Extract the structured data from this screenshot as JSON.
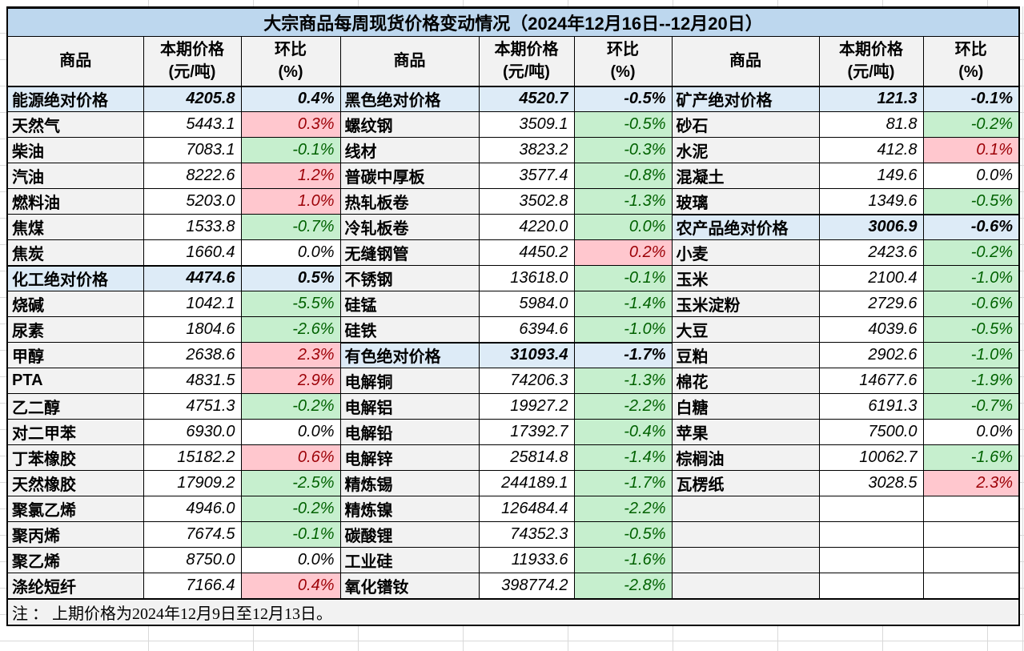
{
  "title": "大宗商品每周现货价格变动情况（2024年12月16日--12月20日）",
  "note": "注 ： 上期价格为2024年12月9日至12月13日。",
  "columns": {
    "name": "商品",
    "price_l1": "本期价格",
    "price_l2": "(元/吨)",
    "chg_l1": "环比",
    "chg_l2": "(%)"
  },
  "colors": {
    "title_bg": "#BDD7EE",
    "header_bg": "#F2F2F2",
    "category_bg": "#DDEBF7",
    "name_bg": "#F2F2F2",
    "up_bg": "#FFC7CE",
    "up_text": "#9C0006",
    "down_bg": "#C6EFCE",
    "down_text": "#006100",
    "border": "#000000"
  },
  "groups": [
    {
      "rows": [
        {
          "name": "能源绝对价格",
          "price": "4205.8",
          "chg": "0.4%",
          "kind": "category"
        },
        {
          "name": "天然气",
          "price": "5443.1",
          "chg": "0.3%",
          "kind": "item",
          "style": "up"
        },
        {
          "name": "柴油",
          "price": "7083.1",
          "chg": "-0.1%",
          "kind": "item",
          "style": "down"
        },
        {
          "name": "汽油",
          "price": "8222.6",
          "chg": "1.2%",
          "kind": "item",
          "style": "up"
        },
        {
          "name": "燃料油",
          "price": "5203.0",
          "chg": "1.0%",
          "kind": "item",
          "style": "up"
        },
        {
          "name": "焦煤",
          "price": "1533.8",
          "chg": "-0.7%",
          "kind": "item",
          "style": "down"
        },
        {
          "name": "焦炭",
          "price": "1660.4",
          "chg": "0.0%",
          "kind": "item",
          "style": "flat"
        },
        {
          "name": "化工绝对价格",
          "price": "4474.6",
          "chg": "0.5%",
          "kind": "category"
        },
        {
          "name": "烧碱",
          "price": "1042.1",
          "chg": "-5.5%",
          "kind": "item",
          "style": "down"
        },
        {
          "name": "尿素",
          "price": "1804.6",
          "chg": "-2.6%",
          "kind": "item",
          "style": "down"
        },
        {
          "name": "甲醇",
          "price": "2638.6",
          "chg": "2.3%",
          "kind": "item",
          "style": "up"
        },
        {
          "name": "PTA",
          "price": "4831.5",
          "chg": "2.9%",
          "kind": "item",
          "style": "up"
        },
        {
          "name": "乙二醇",
          "price": "4751.3",
          "chg": "-0.2%",
          "kind": "item",
          "style": "down"
        },
        {
          "name": "对二甲苯",
          "price": "6930.0",
          "chg": "0.0%",
          "kind": "item",
          "style": "flat"
        },
        {
          "name": "丁苯橡胶",
          "price": "15182.2",
          "chg": "0.6%",
          "kind": "item",
          "style": "up"
        },
        {
          "name": "天然橡胶",
          "price": "17909.2",
          "chg": "-2.5%",
          "kind": "item",
          "style": "down"
        },
        {
          "name": "聚氯乙烯",
          "price": "4946.0",
          "chg": "-0.2%",
          "kind": "item",
          "style": "down"
        },
        {
          "name": "聚丙烯",
          "price": "7674.5",
          "chg": "-0.1%",
          "kind": "item",
          "style": "down"
        },
        {
          "name": "聚乙烯",
          "price": "8750.0",
          "chg": "0.0%",
          "kind": "item",
          "style": "flat"
        },
        {
          "name": "涤纶短纤",
          "price": "7166.4",
          "chg": "0.4%",
          "kind": "item",
          "style": "up"
        }
      ]
    },
    {
      "rows": [
        {
          "name": "黑色绝对价格",
          "price": "4520.7",
          "chg": "-0.5%",
          "kind": "category"
        },
        {
          "name": "螺纹钢",
          "price": "3509.1",
          "chg": "-0.5%",
          "kind": "item",
          "style": "down"
        },
        {
          "name": "线材",
          "price": "3823.2",
          "chg": "-0.3%",
          "kind": "item",
          "style": "down"
        },
        {
          "name": "普碳中厚板",
          "price": "3577.4",
          "chg": "-0.8%",
          "kind": "item",
          "style": "down"
        },
        {
          "name": "热轧板卷",
          "price": "3502.8",
          "chg": "-1.3%",
          "kind": "item",
          "style": "down"
        },
        {
          "name": "冷轧板卷",
          "price": "4220.0",
          "chg": "0.0%",
          "kind": "item",
          "style": "down"
        },
        {
          "name": "无缝钢管",
          "price": "4450.2",
          "chg": "0.2%",
          "kind": "item",
          "style": "up"
        },
        {
          "name": "不锈钢",
          "price": "13618.0",
          "chg": "-0.1%",
          "kind": "item",
          "style": "down"
        },
        {
          "name": "硅锰",
          "price": "5984.0",
          "chg": "-1.4%",
          "kind": "item",
          "style": "down"
        },
        {
          "name": "硅铁",
          "price": "6394.6",
          "chg": "-1.0%",
          "kind": "item",
          "style": "down"
        },
        {
          "name": "有色绝对价格",
          "price": "31093.4",
          "chg": "-1.7%",
          "kind": "category"
        },
        {
          "name": "电解铜",
          "price": "74206.3",
          "chg": "-1.3%",
          "kind": "item",
          "style": "down"
        },
        {
          "name": "电解铝",
          "price": "19927.2",
          "chg": "-2.2%",
          "kind": "item",
          "style": "down"
        },
        {
          "name": "电解铅",
          "price": "17392.7",
          "chg": "-0.4%",
          "kind": "item",
          "style": "down"
        },
        {
          "name": "电解锌",
          "price": "25814.8",
          "chg": "-1.4%",
          "kind": "item",
          "style": "down"
        },
        {
          "name": "精炼锡",
          "price": "244189.1",
          "chg": "-1.7%",
          "kind": "item",
          "style": "down"
        },
        {
          "name": "精炼镍",
          "price": "126484.4",
          "chg": "-2.2%",
          "kind": "item",
          "style": "down"
        },
        {
          "name": "碳酸锂",
          "price": "74352.3",
          "chg": "-0.5%",
          "kind": "item",
          "style": "down"
        },
        {
          "name": "工业硅",
          "price": "11933.6",
          "chg": "-1.6%",
          "kind": "item",
          "style": "down"
        },
        {
          "name": "氧化镨钕",
          "price": "398774.2",
          "chg": "-2.8%",
          "kind": "item",
          "style": "down"
        }
      ]
    },
    {
      "rows": [
        {
          "name": "矿产绝对价格",
          "price": "121.3",
          "chg": "-0.1%",
          "kind": "category"
        },
        {
          "name": "砂石",
          "price": "81.8",
          "chg": "-0.2%",
          "kind": "item",
          "style": "down"
        },
        {
          "name": "水泥",
          "price": "412.8",
          "chg": "0.1%",
          "kind": "item",
          "style": "up"
        },
        {
          "name": "混凝土",
          "price": "149.6",
          "chg": "0.0%",
          "kind": "item",
          "style": "flat"
        },
        {
          "name": "玻璃",
          "price": "1349.6",
          "chg": "-0.5%",
          "kind": "item",
          "style": "down"
        },
        {
          "name": "农产品绝对价格",
          "price": "3006.9",
          "chg": "-0.6%",
          "kind": "category"
        },
        {
          "name": "小麦",
          "price": "2423.6",
          "chg": "-0.2%",
          "kind": "item",
          "style": "down"
        },
        {
          "name": "玉米",
          "price": "2100.4",
          "chg": "-1.0%",
          "kind": "item",
          "style": "down"
        },
        {
          "name": "玉米淀粉",
          "price": "2729.6",
          "chg": "-0.6%",
          "kind": "item",
          "style": "down"
        },
        {
          "name": "大豆",
          "price": "4039.6",
          "chg": "-0.5%",
          "kind": "item",
          "style": "down"
        },
        {
          "name": "豆粕",
          "price": "2902.6",
          "chg": "-1.0%",
          "kind": "item",
          "style": "down"
        },
        {
          "name": "棉花",
          "price": "14677.6",
          "chg": "-1.9%",
          "kind": "item",
          "style": "down"
        },
        {
          "name": "白糖",
          "price": "6191.3",
          "chg": "-0.7%",
          "kind": "item",
          "style": "down"
        },
        {
          "name": "苹果",
          "price": "7500.0",
          "chg": "0.0%",
          "kind": "item",
          "style": "flat"
        },
        {
          "name": "棕榈油",
          "price": "10062.7",
          "chg": "-1.6%",
          "kind": "item",
          "style": "down"
        },
        {
          "name": "瓦楞纸",
          "price": "3028.5",
          "chg": "2.3%",
          "kind": "item",
          "style": "up"
        },
        {
          "name": "",
          "price": "",
          "chg": "",
          "kind": "empty"
        },
        {
          "name": "",
          "price": "",
          "chg": "",
          "kind": "empty"
        },
        {
          "name": "",
          "price": "",
          "chg": "",
          "kind": "empty"
        },
        {
          "name": "",
          "price": "",
          "chg": "",
          "kind": "empty"
        }
      ]
    }
  ]
}
